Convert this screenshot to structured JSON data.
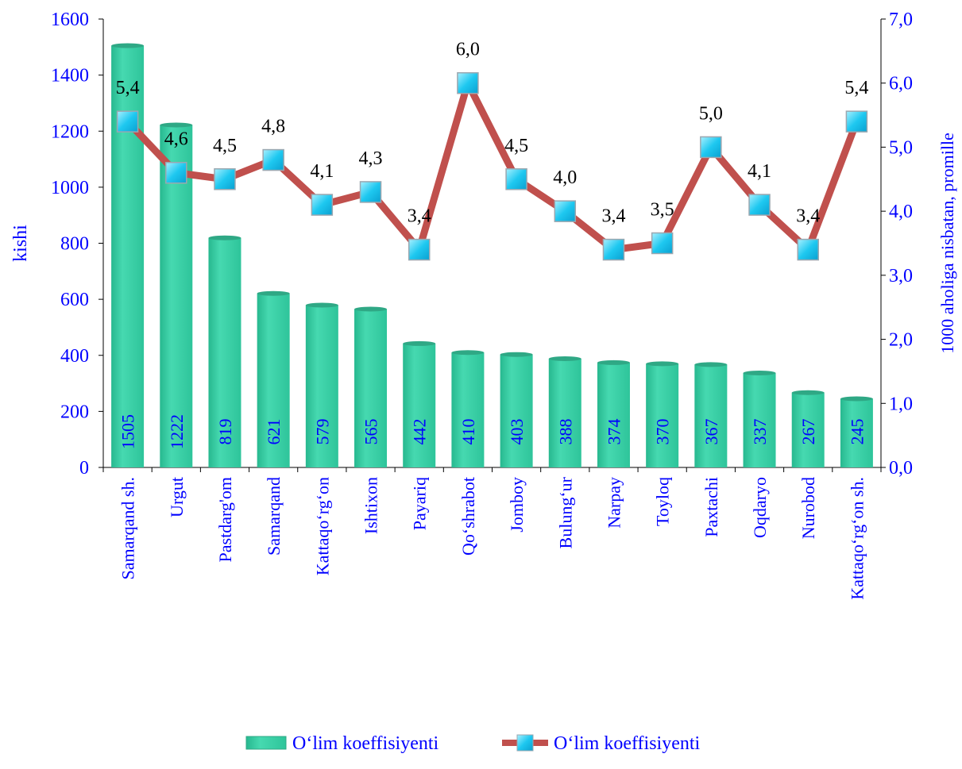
{
  "chart_data": {
    "type": "bar+line",
    "categories": [
      "Samarqand sh.",
      "Urgut",
      "Pastdarg'om",
      "Samarqand",
      "Kattaqo‘rg‘on",
      "Ishtixon",
      "Payariq",
      "Qo‘shrabot",
      "Jomboy",
      "Bulung‘ur",
      "Narpay",
      "Toyloq",
      "Paxtachi",
      "Oqdaryo",
      "Nurobod",
      "Kattaqo‘rg‘on sh."
    ],
    "series": [
      {
        "name": "O‘lim koeffisiyenti",
        "type": "bar",
        "axis": "left",
        "values": [
          1505,
          1222,
          819,
          621,
          579,
          565,
          442,
          410,
          403,
          388,
          374,
          370,
          367,
          337,
          267,
          245
        ],
        "labels": [
          "1505",
          "1222",
          "819",
          "621",
          "579",
          "565",
          "442",
          "410",
          "403",
          "388",
          "374",
          "370",
          "367",
          "337",
          "267",
          "245"
        ]
      },
      {
        "name": "O‘lim koeffisiyenti",
        "type": "line",
        "axis": "right",
        "values": [
          5.4,
          4.6,
          4.5,
          4.8,
          4.1,
          4.3,
          3.4,
          6.0,
          4.5,
          4.0,
          3.4,
          3.5,
          5.0,
          4.1,
          3.4,
          5.4
        ],
        "labels": [
          "5,4",
          "4,6",
          "4,5",
          "4,8",
          "4,1",
          "4,3",
          "3,4",
          "6,0",
          "4,5",
          "4,0",
          "3,4",
          "3,5",
          "5,0",
          "4,1",
          "3,4",
          "5,4"
        ]
      }
    ],
    "ylabel": "kishi",
    "y2label": "1000 aholiga nisbatan, promille",
    "ylim": [
      0,
      1600
    ],
    "y2lim": [
      0,
      7
    ],
    "yticks": [
      "0",
      "200",
      "400",
      "600",
      "800",
      "1000",
      "1200",
      "1400",
      "1600"
    ],
    "y2ticks": [
      "0,0",
      "1,0",
      "2,0",
      "3,0",
      "4,0",
      "5,0",
      "6,0",
      "7,0"
    ],
    "grid": false,
    "legend_position": "bottom",
    "colors": {
      "bar_fill": "#3ecfa6",
      "bar_top": "#2fa885",
      "line": "#c0504d",
      "marker": "#1ec8f0",
      "axis_text": "#0000ff",
      "label_text": "#000000"
    }
  }
}
